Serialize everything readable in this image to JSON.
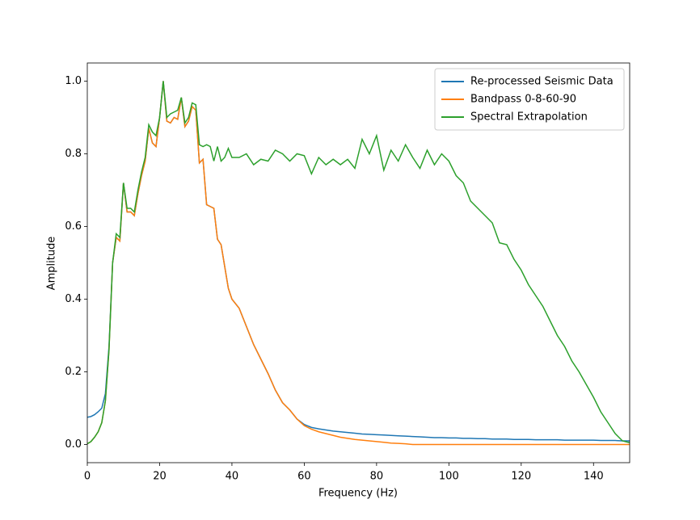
{
  "chart_data": {
    "type": "line",
    "x_label": "Frequency (Hz)",
    "y_label": "Amplitude",
    "x": [
      0,
      1,
      2,
      3,
      4,
      5,
      6,
      7,
      8,
      9,
      10,
      11,
      12,
      13,
      14,
      15,
      16,
      17,
      18,
      19,
      20,
      21,
      22,
      23,
      24,
      25,
      26,
      27,
      28,
      29,
      30,
      31,
      32,
      33,
      34,
      35,
      36,
      37,
      38,
      39,
      40,
      42,
      44,
      46,
      48,
      50,
      52,
      54,
      56,
      58,
      60,
      62,
      64,
      66,
      68,
      70,
      72,
      74,
      76,
      78,
      80,
      82,
      84,
      86,
      88,
      90,
      92,
      94,
      96,
      98,
      100,
      102,
      104,
      106,
      108,
      110,
      112,
      114,
      116,
      118,
      120,
      122,
      124,
      126,
      128,
      130,
      132,
      134,
      136,
      138,
      140,
      142,
      144,
      146,
      148,
      150
    ],
    "series": [
      {
        "name": "Re-processed Seismic Data",
        "color": "#1f77b4",
        "values": [
          0.075,
          0.077,
          0.082,
          0.09,
          0.1,
          0.14,
          0.27,
          0.5,
          0.57,
          0.56,
          0.72,
          0.64,
          0.64,
          0.63,
          0.69,
          0.74,
          0.78,
          0.87,
          0.83,
          0.82,
          0.9,
          1.0,
          0.89,
          0.885,
          0.9,
          0.895,
          0.955,
          0.875,
          0.89,
          0.93,
          0.92,
          0.775,
          0.785,
          0.66,
          0.655,
          0.65,
          0.565,
          0.55,
          0.49,
          0.43,
          0.4,
          0.375,
          0.325,
          0.275,
          0.235,
          0.195,
          0.15,
          0.115,
          0.095,
          0.07,
          0.055,
          0.047,
          0.043,
          0.04,
          0.037,
          0.035,
          0.033,
          0.031,
          0.029,
          0.028,
          0.027,
          0.026,
          0.025,
          0.024,
          0.023,
          0.022,
          0.021,
          0.02,
          0.019,
          0.019,
          0.018,
          0.018,
          0.017,
          0.017,
          0.016,
          0.016,
          0.015,
          0.015,
          0.015,
          0.014,
          0.014,
          0.014,
          0.013,
          0.013,
          0.013,
          0.013,
          0.012,
          0.012,
          0.012,
          0.012,
          0.012,
          0.011,
          0.011,
          0.011,
          0.01,
          0.01
        ]
      },
      {
        "name": "Bandpass 0-8-60-90",
        "color": "#ff7f0e",
        "values": [
          0.002,
          0.008,
          0.02,
          0.035,
          0.06,
          0.12,
          0.26,
          0.5,
          0.57,
          0.56,
          0.72,
          0.64,
          0.64,
          0.63,
          0.69,
          0.74,
          0.78,
          0.87,
          0.83,
          0.82,
          0.9,
          1.0,
          0.89,
          0.885,
          0.9,
          0.895,
          0.955,
          0.875,
          0.89,
          0.93,
          0.92,
          0.775,
          0.785,
          0.66,
          0.655,
          0.65,
          0.565,
          0.55,
          0.49,
          0.43,
          0.4,
          0.375,
          0.325,
          0.275,
          0.235,
          0.195,
          0.15,
          0.115,
          0.095,
          0.07,
          0.052,
          0.042,
          0.035,
          0.03,
          0.025,
          0.02,
          0.017,
          0.014,
          0.012,
          0.01,
          0.008,
          0.006,
          0.004,
          0.003,
          0.002,
          0,
          0,
          0,
          0,
          0,
          0,
          0,
          0,
          0,
          0,
          0,
          0,
          0,
          0,
          0,
          0,
          0,
          0,
          0,
          0,
          0,
          0,
          0,
          0,
          0,
          0,
          0,
          0,
          0,
          0,
          0
        ]
      },
      {
        "name": "Spectral Extrapolation",
        "color": "#2ca02c",
        "values": [
          0.002,
          0.008,
          0.02,
          0.035,
          0.06,
          0.12,
          0.26,
          0.5,
          0.58,
          0.57,
          0.72,
          0.65,
          0.65,
          0.64,
          0.7,
          0.75,
          0.79,
          0.88,
          0.86,
          0.85,
          0.9,
          1.0,
          0.9,
          0.91,
          0.915,
          0.92,
          0.955,
          0.885,
          0.9,
          0.94,
          0.935,
          0.825,
          0.82,
          0.825,
          0.82,
          0.78,
          0.82,
          0.78,
          0.79,
          0.815,
          0.79,
          0.79,
          0.8,
          0.77,
          0.785,
          0.78,
          0.81,
          0.8,
          0.78,
          0.8,
          0.795,
          0.745,
          0.79,
          0.77,
          0.785,
          0.77,
          0.785,
          0.76,
          0.84,
          0.8,
          0.85,
          0.755,
          0.81,
          0.78,
          0.825,
          0.79,
          0.76,
          0.81,
          0.77,
          0.8,
          0.78,
          0.74,
          0.72,
          0.67,
          0.65,
          0.63,
          0.61,
          0.555,
          0.55,
          0.51,
          0.48,
          0.44,
          0.41,
          0.38,
          0.34,
          0.3,
          0.27,
          0.23,
          0.2,
          0.165,
          0.13,
          0.09,
          0.06,
          0.03,
          0.01,
          0.005
        ]
      }
    ],
    "xlim": [
      0,
      150
    ],
    "ylim": [
      -0.05,
      1.05
    ],
    "xticks": [
      0,
      20,
      40,
      60,
      80,
      100,
      120,
      140
    ],
    "yticks": [
      {
        "value": 0,
        "label": "0.0"
      },
      {
        "value": 0.2,
        "label": "0.2"
      },
      {
        "value": 0.4,
        "label": "0.4"
      },
      {
        "value": 0.6,
        "label": "0.6"
      },
      {
        "value": 0.8,
        "label": "0.8"
      },
      {
        "value": 1,
        "label": "1.0"
      }
    ],
    "legend": "upper right"
  }
}
